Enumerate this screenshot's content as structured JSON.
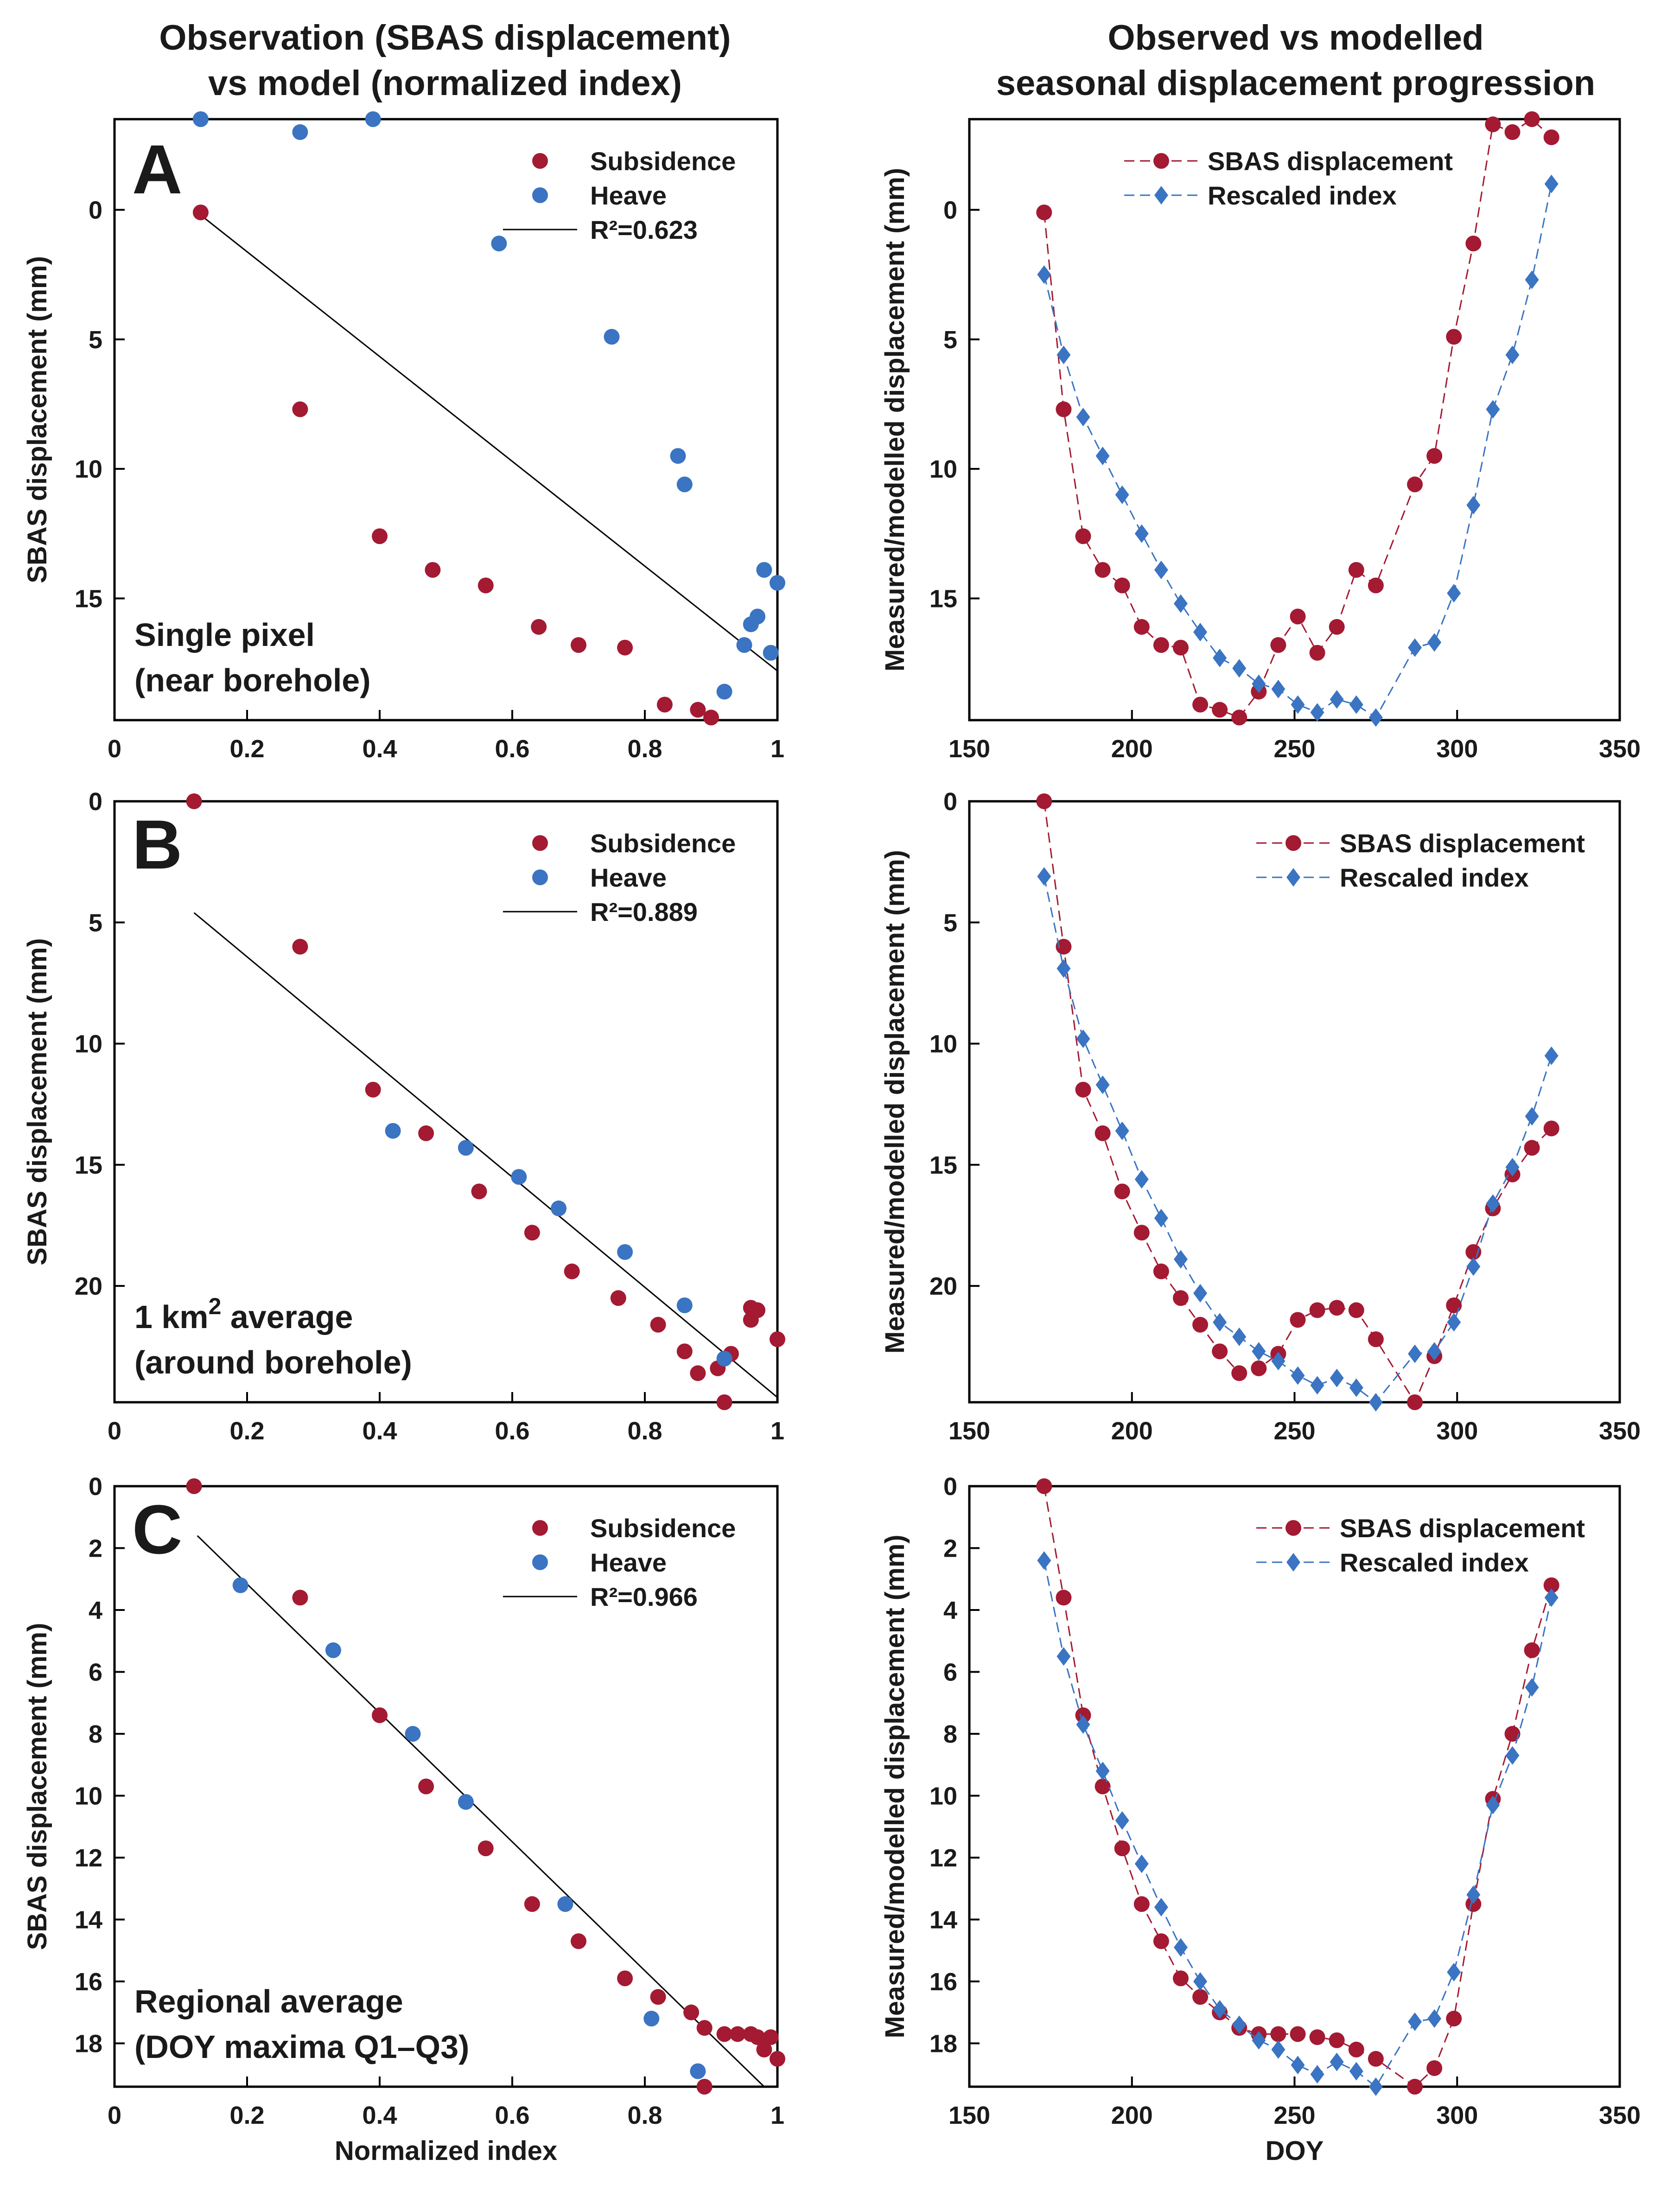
{
  "column_titles": {
    "left": [
      "Observation (SBAS displacement)",
      "vs model (normalized index)"
    ],
    "right": [
      "Observed vs modelled",
      "seasonal displacement progression"
    ]
  },
  "colors": {
    "subsidence": "#a31a32",
    "heave": "#3a74c2",
    "fit": "#000000"
  },
  "chart_data": [
    {
      "id": "A-left",
      "type": "scatter",
      "panel_letter": "A",
      "caption": [
        "Single pixel",
        "(near borehole)"
      ],
      "xlabel": "",
      "ylabel": "SBAS displacement (mm)",
      "xlim": [
        0,
        1
      ],
      "ylim": [
        -3.5,
        19.7
      ],
      "xticks": [
        0,
        0.2,
        0.4,
        0.6,
        0.8,
        1
      ],
      "yticks": [
        0,
        5,
        10,
        15
      ],
      "series": [
        {
          "name": "Subsidence",
          "x": [
            0.13,
            0.28,
            0.4,
            0.48,
            0.56,
            0.64,
            0.7,
            0.77,
            0.83,
            0.88,
            0.9
          ],
          "y": [
            0.1,
            7.7,
            12.6,
            13.9,
            14.5,
            16.1,
            16.8,
            16.9,
            19.1,
            19.3,
            19.6
          ]
        },
        {
          "name": "Heave",
          "x": [
            0.13,
            0.28,
            0.39,
            0.58,
            0.75,
            0.85,
            0.86,
            0.92,
            0.95,
            0.96,
            0.97,
            0.98,
            0.99,
            1.0
          ],
          "y": [
            -3.5,
            -3.0,
            -3.5,
            1.3,
            4.9,
            9.5,
            10.6,
            18.6,
            16.8,
            16.0,
            15.7,
            13.9,
            17.1,
            14.4
          ]
        }
      ],
      "fit": {
        "label": "R²=0.623",
        "x": [
          0.12,
          1.0
        ],
        "y": [
          0.0,
          17.8
        ]
      },
      "legend": [
        "Subsidence",
        "Heave",
        "R²=0.623"
      ]
    },
    {
      "id": "A-right",
      "type": "line",
      "xlabel": "",
      "ylabel": "Measured/modelled displacement (mm)",
      "xlim": [
        150,
        350
      ],
      "ylim": [
        -3.5,
        19.7
      ],
      "xticks": [
        150,
        200,
        250,
        300,
        350
      ],
      "yticks": [
        0,
        5,
        10,
        15
      ],
      "series": [
        {
          "name": "SBAS displacement",
          "marker": "circle",
          "x": [
            173,
            179,
            185,
            191,
            197,
            203,
            209,
            215,
            221,
            227,
            233,
            239,
            245,
            251,
            257,
            263,
            269,
            275,
            287,
            293,
            299,
            305,
            311,
            317,
            323,
            329
          ],
          "y": [
            0.1,
            7.7,
            12.6,
            13.9,
            14.5,
            16.1,
            16.8,
            16.9,
            19.1,
            19.3,
            19.6,
            18.6,
            16.8,
            15.7,
            17.1,
            16.1,
            13.9,
            14.5,
            10.6,
            9.5,
            4.9,
            1.3,
            -3.3,
            -3.0,
            -3.5,
            -2.8
          ]
        },
        {
          "name": "Rescaled index",
          "marker": "diamond",
          "x": [
            173,
            179,
            185,
            191,
            197,
            203,
            209,
            215,
            221,
            227,
            233,
            239,
            245,
            251,
            257,
            263,
            269,
            275,
            287,
            293,
            299,
            305,
            311,
            317,
            323,
            329
          ],
          "y": [
            2.5,
            5.6,
            8.0,
            9.5,
            11.0,
            12.5,
            13.9,
            15.2,
            16.3,
            17.3,
            17.7,
            18.3,
            18.5,
            19.1,
            19.4,
            18.9,
            19.1,
            19.6,
            16.9,
            16.7,
            14.8,
            11.4,
            7.7,
            5.6,
            2.7,
            -1.0
          ]
        }
      ],
      "legend": [
        "SBAS displacement",
        "Rescaled index"
      ]
    },
    {
      "id": "B-left",
      "type": "scatter",
      "panel_letter": "B",
      "caption": [
        "1 km",
        "2",
        " average",
        "(around borehole)"
      ],
      "xlabel": "",
      "ylabel": "SBAS displacement (mm)",
      "xlim": [
        0,
        1
      ],
      "ylim": [
        0,
        24.8
      ],
      "xticks": [
        0,
        0.2,
        0.4,
        0.6,
        0.8,
        1
      ],
      "yticks": [
        0,
        5,
        10,
        15,
        20
      ],
      "series": [
        {
          "name": "Subsidence",
          "x": [
            0.12,
            0.28,
            0.39,
            0.47,
            0.55,
            0.63,
            0.69,
            0.76,
            0.82,
            0.86,
            0.88,
            0.91,
            0.92,
            0.93,
            0.96,
            0.96,
            0.97,
            1.0
          ],
          "y": [
            0.0,
            6.0,
            11.9,
            13.7,
            16.1,
            17.8,
            19.4,
            20.5,
            21.6,
            22.7,
            23.6,
            23.4,
            24.8,
            22.8,
            21.4,
            20.9,
            21.0,
            22.2
          ]
        },
        {
          "name": "Heave",
          "x": [
            0.42,
            0.53,
            0.61,
            0.67,
            0.77,
            0.86,
            0.92
          ],
          "y": [
            13.6,
            14.3,
            15.5,
            16.8,
            18.6,
            20.8,
            23.0
          ]
        }
      ],
      "fit": {
        "label": "R²=0.889",
        "x": [
          0.12,
          1.0
        ],
        "y": [
          4.6,
          24.6
        ]
      },
      "legend": [
        "Subsidence",
        "Heave",
        "R²=0.889"
      ]
    },
    {
      "id": "B-right",
      "type": "line",
      "xlabel": "",
      "ylabel": "Measured/modelled displacement (mm)",
      "xlim": [
        150,
        350
      ],
      "ylim": [
        0,
        24.8
      ],
      "xticks": [
        150,
        200,
        250,
        300,
        350
      ],
      "yticks": [
        0,
        5,
        10,
        15,
        20
      ],
      "series": [
        {
          "name": "SBAS displacement",
          "marker": "circle",
          "x": [
            173,
            179,
            185,
            191,
            197,
            203,
            209,
            215,
            221,
            227,
            233,
            239,
            245,
            251,
            257,
            263,
            269,
            275,
            287,
            293,
            299,
            305,
            311,
            317,
            323,
            329
          ],
          "y": [
            0.0,
            6.0,
            11.9,
            13.7,
            16.1,
            17.8,
            19.4,
            20.5,
            21.6,
            22.7,
            23.6,
            23.4,
            22.8,
            21.4,
            21.0,
            20.9,
            21.0,
            22.2,
            24.8,
            22.9,
            20.8,
            18.6,
            16.8,
            15.4,
            14.3,
            13.5
          ]
        },
        {
          "name": "Rescaled index",
          "marker": "diamond",
          "x": [
            173,
            179,
            185,
            191,
            197,
            203,
            209,
            215,
            221,
            227,
            233,
            239,
            245,
            251,
            257,
            263,
            269,
            275,
            287,
            293,
            299,
            305,
            311,
            317,
            323,
            329
          ],
          "y": [
            3.1,
            6.9,
            9.8,
            11.7,
            13.6,
            15.6,
            17.2,
            18.9,
            20.3,
            21.5,
            22.1,
            22.7,
            23.1,
            23.7,
            24.1,
            23.8,
            24.2,
            24.8,
            22.8,
            22.7,
            21.5,
            19.2,
            16.6,
            15.1,
            13.0,
            10.5
          ]
        }
      ],
      "legend": [
        "SBAS displacement",
        "Rescaled index"
      ]
    },
    {
      "id": "C-left",
      "type": "scatter",
      "panel_letter": "C",
      "caption": [
        "Regional average",
        "(DOY maxima Q1–Q3)"
      ],
      "xlabel": "Normalized index",
      "ylabel": "SBAS displacement (mm)",
      "xlim": [
        0,
        1
      ],
      "ylim": [
        0,
        19.4
      ],
      "xticks": [
        0,
        0.2,
        0.4,
        0.6,
        0.8,
        1
      ],
      "yticks": [
        0,
        2,
        4,
        6,
        8,
        10,
        12,
        14,
        16,
        18
      ],
      "series": [
        {
          "name": "Subsidence",
          "x": [
            0.12,
            0.28,
            0.4,
            0.47,
            0.56,
            0.63,
            0.7,
            0.77,
            0.82,
            0.87,
            0.89,
            0.92,
            0.94,
            0.96,
            0.97,
            0.98,
            0.99,
            1.0,
            0.89
          ],
          "y": [
            0.0,
            3.6,
            7.4,
            9.7,
            11.7,
            13.5,
            14.7,
            15.9,
            16.5,
            17.0,
            17.5,
            17.7,
            17.7,
            17.7,
            17.8,
            18.2,
            17.8,
            18.5,
            19.4
          ]
        },
        {
          "name": "Heave",
          "x": [
            0.19,
            0.33,
            0.45,
            0.53,
            0.68,
            0.81,
            0.88
          ],
          "y": [
            3.2,
            5.3,
            8.0,
            10.2,
            13.5,
            17.2,
            18.9
          ]
        }
      ],
      "fit": {
        "label": "R²=0.966",
        "x": [
          0.125,
          0.98
        ],
        "y": [
          1.6,
          19.4
        ]
      },
      "legend": [
        "Subsidence",
        "Heave",
        "R²=0.966"
      ]
    },
    {
      "id": "C-right",
      "type": "line",
      "xlabel": "DOY",
      "ylabel": "Measured/modelled displacement (mm)",
      "xlim": [
        150,
        350
      ],
      "ylim": [
        0,
        19.4
      ],
      "xticks": [
        150,
        200,
        250,
        300,
        350
      ],
      "yticks": [
        0,
        2,
        4,
        6,
        8,
        10,
        12,
        14,
        16,
        18
      ],
      "series": [
        {
          "name": "SBAS displacement",
          "marker": "circle",
          "x": [
            173,
            179,
            185,
            191,
            197,
            203,
            209,
            215,
            221,
            227,
            233,
            239,
            245,
            251,
            257,
            263,
            269,
            275,
            287,
            293,
            299,
            305,
            311,
            317,
            323,
            329
          ],
          "y": [
            0.0,
            3.6,
            7.4,
            9.7,
            11.7,
            13.5,
            14.7,
            15.9,
            16.5,
            17.0,
            17.5,
            17.7,
            17.7,
            17.7,
            17.8,
            17.9,
            18.2,
            18.5,
            19.4,
            18.8,
            17.2,
            13.5,
            10.1,
            8.0,
            5.3,
            3.2
          ]
        },
        {
          "name": "Rescaled index",
          "marker": "diamond",
          "x": [
            173,
            179,
            185,
            191,
            197,
            203,
            209,
            215,
            221,
            227,
            233,
            239,
            245,
            251,
            257,
            263,
            269,
            275,
            287,
            293,
            299,
            305,
            311,
            317,
            323,
            329
          ],
          "y": [
            2.4,
            5.5,
            7.7,
            9.2,
            10.8,
            12.2,
            13.6,
            14.9,
            16.0,
            16.9,
            17.4,
            17.9,
            18.2,
            18.7,
            19.0,
            18.6,
            18.9,
            19.4,
            17.3,
            17.2,
            15.7,
            13.2,
            10.3,
            8.7,
            6.5,
            3.6
          ]
        }
      ],
      "legend": [
        "SBAS displacement",
        "Rescaled index"
      ]
    }
  ]
}
